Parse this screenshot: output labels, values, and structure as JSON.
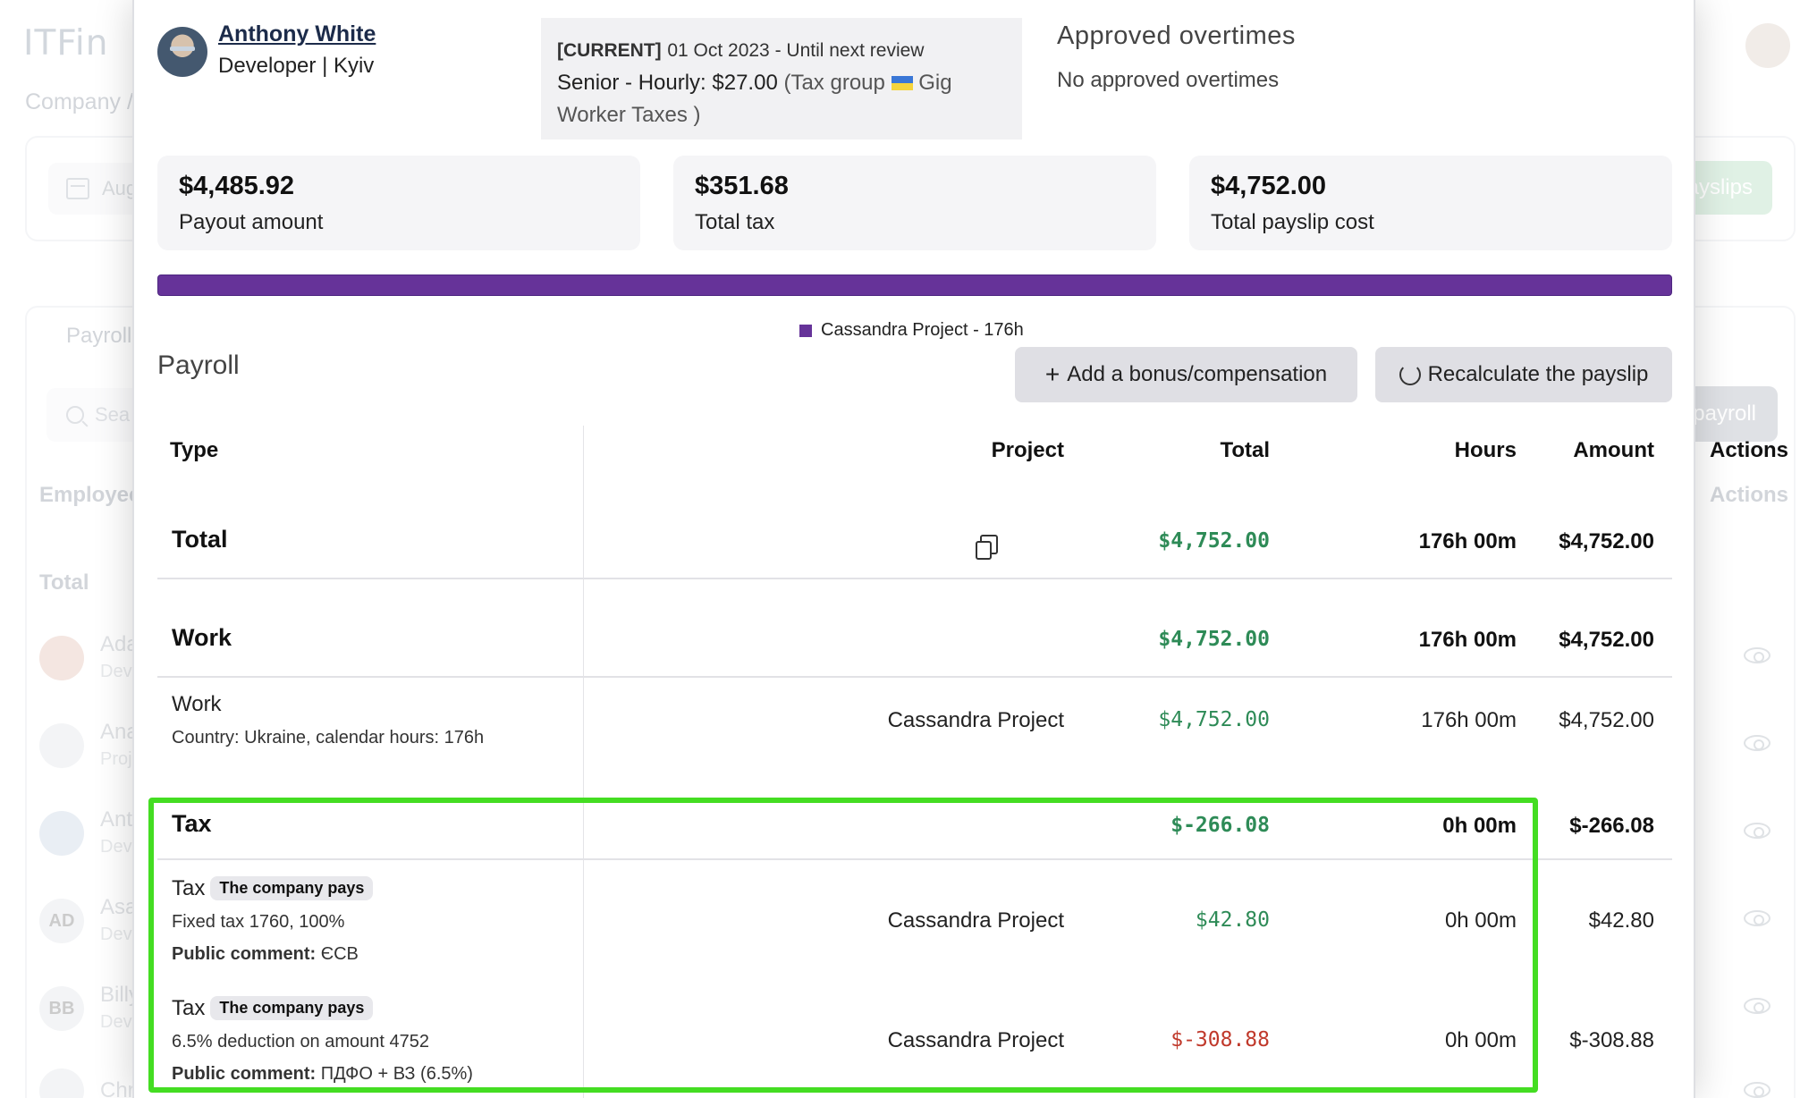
{
  "background": {
    "app_name": "ITFin",
    "breadcrumb": "Company /",
    "date_filter": "Aug",
    "payslips_button": "payslips",
    "tab": "Payroll",
    "search_placeholder": "Sea",
    "add_payroll_button": "payroll",
    "employee_header": "Employee",
    "actions_header": "Actions",
    "total_label": "Total",
    "rows": [
      {
        "initials": "",
        "name": "Ada",
        "sub": "Deve"
      },
      {
        "initials": "",
        "name": "Anas",
        "sub": "Proje"
      },
      {
        "initials": "",
        "name": "Anth",
        "sub": "Deve"
      },
      {
        "initials": "AD",
        "name": "Asar",
        "sub": "Deve"
      },
      {
        "initials": "BB",
        "name": "Billy",
        "sub": "Deve"
      },
      {
        "initials": "",
        "name": "Chri",
        "sub": ""
      }
    ]
  },
  "employee": {
    "name": "Anthony White",
    "role": "Developer | Kyiv"
  },
  "contract": {
    "tag": "[CURRENT]",
    "date": "01 Oct 2023 - Until next review",
    "line2": "Senior - Hourly: $27.00",
    "tax_group_prefix": "(Tax group",
    "tax_group_name": "Gig",
    "line3": "Worker Taxes )"
  },
  "overtimes": {
    "title": "Approved overtimes",
    "empty": "No approved overtimes"
  },
  "stats": [
    {
      "value": "$4,485.92",
      "label": "Payout amount"
    },
    {
      "value": "$351.68",
      "label": "Total tax"
    },
    {
      "value": "$4,752.00",
      "label": "Total payslip cost"
    }
  ],
  "project_bar": {
    "color": "#663399",
    "legend": "Cassandra Project - 176h"
  },
  "payroll": {
    "title": "Payroll",
    "add_button": "Add a bonus/compensation",
    "recalc_button": "Recalculate the payslip",
    "columns": {
      "type": "Type",
      "project": "Project",
      "total": "Total",
      "hours": "Hours",
      "amount": "Amount",
      "actions": "Actions"
    },
    "total_row": {
      "label": "Total",
      "total": "$4,752.00",
      "hours": "176h 00m",
      "amount": "$4,752.00"
    },
    "work_section": {
      "label": "Work",
      "total": "$4,752.00",
      "hours": "176h 00m",
      "amount": "$4,752.00"
    },
    "work_item": {
      "label": "Work",
      "detail": "Country: Ukraine, calendar hours: 176h",
      "project": "Cassandra Project",
      "total": "$4,752.00",
      "hours": "176h 00m",
      "amount": "$4,752.00"
    },
    "tax_section": {
      "label": "Tax",
      "total": "$-266.08",
      "hours": "0h 00m",
      "amount": "$-266.08"
    },
    "tax_items": [
      {
        "label": "Tax",
        "badge": "The company pays",
        "detail": "Fixed tax 1760, 100%",
        "comment_label": "Public comment:",
        "comment": "ЄСВ",
        "project": "Cassandra Project",
        "total": "$42.80",
        "hours": "0h 00m",
        "amount": "$42.80"
      },
      {
        "label": "Tax",
        "badge": "The company pays",
        "detail": "6.5% deduction on amount 4752",
        "comment_label": "Public comment:",
        "comment": "ПДФО + ВЗ (6.5%)",
        "project": "Cassandra Project",
        "total": "$-308.88",
        "hours": "0h 00m",
        "amount": "$-308.88"
      }
    ]
  }
}
